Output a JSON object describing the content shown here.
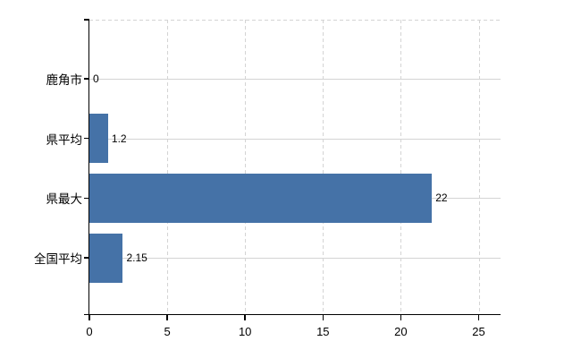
{
  "chart_data": {
    "type": "bar",
    "orientation": "horizontal",
    "title": "",
    "xlabel": "",
    "ylabel": "",
    "categories": [
      "鹿角市",
      "県平均",
      "県最大",
      "全国平均"
    ],
    "values": [
      0,
      1.2,
      22,
      2.15
    ],
    "value_labels": [
      "0",
      "1.2",
      "22",
      "2.15"
    ],
    "xticks": [
      0,
      5,
      10,
      15,
      20,
      25
    ],
    "xlim": [
      0,
      26.4
    ],
    "grid": true,
    "legend": false,
    "colors": {
      "bar": "#4572A7",
      "gridline": "#d4d4d4",
      "axis": "#000000",
      "text": "#000000",
      "background": "#ffffff"
    }
  }
}
